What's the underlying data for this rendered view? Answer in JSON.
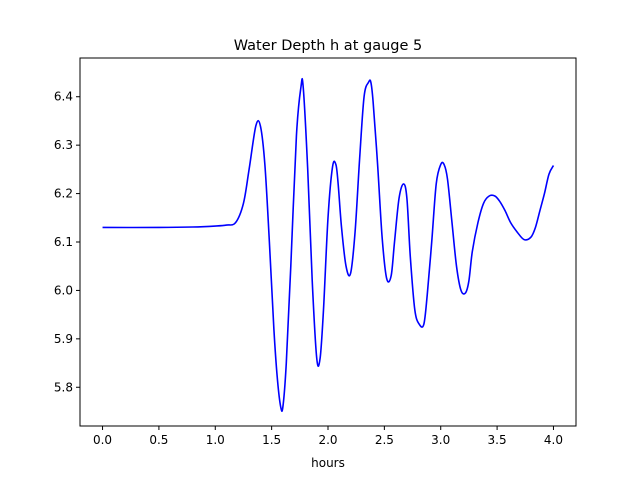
{
  "chart_data": {
    "type": "line",
    "title": "Water Depth h at gauge 5",
    "xlabel": "hours",
    "ylabel": "",
    "xlim": [
      -0.2,
      4.2
    ],
    "ylim": [
      5.72,
      6.48
    ],
    "x_ticks": [
      0.0,
      0.5,
      1.0,
      1.5,
      2.0,
      2.5,
      3.0,
      3.5,
      4.0
    ],
    "x_tick_labels": [
      "0.0",
      "0.5",
      "1.0",
      "1.5",
      "2.0",
      "2.5",
      "3.0",
      "3.5",
      "4.0"
    ],
    "y_ticks": [
      5.8,
      5.9,
      6.0,
      6.1,
      6.2,
      6.3,
      6.4
    ],
    "y_tick_labels": [
      "5.8",
      "5.9",
      "6.0",
      "6.1",
      "6.2",
      "6.3",
      "6.4"
    ],
    "grid": false,
    "line_color": "#0000ff",
    "series": [
      {
        "x": [
          0.0,
          0.5,
          0.8,
          1.0,
          1.1,
          1.18,
          1.25,
          1.3,
          1.36,
          1.4,
          1.44,
          1.48,
          1.52,
          1.55,
          1.58,
          1.6,
          1.63,
          1.67,
          1.72,
          1.76,
          1.78,
          1.82,
          1.86,
          1.9,
          1.93,
          1.96,
          2.0,
          2.04,
          2.07,
          2.09,
          2.12,
          2.16,
          2.2,
          2.24,
          2.28,
          2.32,
          2.36,
          2.38,
          2.4,
          2.44,
          2.48,
          2.52,
          2.56,
          2.59,
          2.63,
          2.67,
          2.7,
          2.73,
          2.77,
          2.81,
          2.85,
          2.88,
          2.92,
          2.96,
          3.0,
          3.03,
          3.06,
          3.1,
          3.14,
          3.18,
          3.22,
          3.25,
          3.28,
          3.33,
          3.38,
          3.43,
          3.48,
          3.52,
          3.57,
          3.62,
          3.68,
          3.74,
          3.8,
          3.84,
          3.88,
          3.92,
          3.96,
          4.0
        ],
        "y": [
          6.13,
          6.13,
          6.131,
          6.133,
          6.135,
          6.14,
          6.18,
          6.25,
          6.34,
          6.34,
          6.26,
          6.1,
          5.92,
          5.82,
          5.76,
          5.76,
          5.85,
          6.05,
          6.32,
          6.42,
          6.42,
          6.25,
          6.02,
          5.86,
          5.86,
          5.96,
          6.15,
          6.255,
          6.26,
          6.22,
          6.13,
          6.05,
          6.035,
          6.12,
          6.27,
          6.4,
          6.43,
          6.43,
          6.39,
          6.26,
          6.11,
          6.025,
          6.03,
          6.1,
          6.19,
          6.22,
          6.19,
          6.07,
          5.96,
          5.93,
          5.93,
          5.99,
          6.1,
          6.22,
          6.26,
          6.26,
          6.23,
          6.14,
          6.05,
          6.0,
          5.995,
          6.02,
          6.08,
          6.14,
          6.18,
          6.195,
          6.195,
          6.185,
          6.165,
          6.14,
          6.12,
          6.105,
          6.11,
          6.13,
          6.165,
          6.2,
          6.24,
          6.258
        ]
      }
    ]
  }
}
